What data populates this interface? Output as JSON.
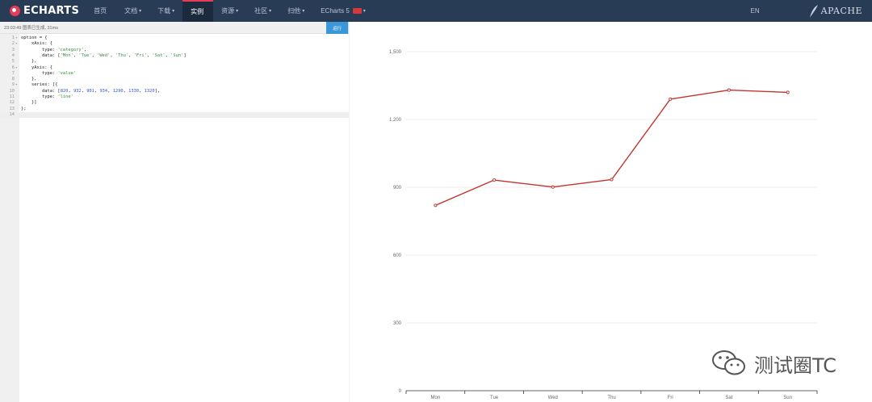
{
  "nav": {
    "logo": "ECHARTS",
    "items": [
      {
        "label": "首页",
        "caret": ""
      },
      {
        "label": "文档",
        "caret": "▾"
      },
      {
        "label": "下载",
        "caret": "▾"
      },
      {
        "label": "实例",
        "caret": ""
      },
      {
        "label": "资源",
        "caret": "▾"
      },
      {
        "label": "社区",
        "caret": "▾"
      },
      {
        "label": "扫他",
        "caret": "▾"
      },
      {
        "label": "ECharts 5",
        "caret": "▾"
      }
    ],
    "lang": "EN",
    "apache": "APACHE"
  },
  "editor": {
    "status": "23:03:49  图表已生成, 31ms",
    "run_label": "运行",
    "lines": [
      {
        "no": "1",
        "fold": "▾",
        "code": "option = {"
      },
      {
        "no": "2",
        "fold": "▾",
        "code": "    xAxis: {"
      },
      {
        "no": "3",
        "fold": "",
        "code": "        type: 'category',"
      },
      {
        "no": "4",
        "fold": "",
        "code": "        data: ['Mon', 'Tue', 'Wed', 'Thu', 'Fri', 'Sat', 'Sun']"
      },
      {
        "no": "5",
        "fold": "",
        "code": "    },"
      },
      {
        "no": "6",
        "fold": "▾",
        "code": "    yAxis: {"
      },
      {
        "no": "7",
        "fold": "",
        "code": "        type: 'value'"
      },
      {
        "no": "8",
        "fold": "",
        "code": "    },"
      },
      {
        "no": "9",
        "fold": "▾",
        "code": "    series: [{"
      },
      {
        "no": "10",
        "fold": "",
        "code": "        data: [820, 932, 901, 934, 1290, 1330, 1320],"
      },
      {
        "no": "11",
        "fold": "",
        "code": "        type: 'line'"
      },
      {
        "no": "12",
        "fold": "",
        "code": "    }]"
      },
      {
        "no": "13",
        "fold": "",
        "code": "};"
      },
      {
        "no": "14",
        "fold": "",
        "code": ""
      }
    ]
  },
  "chart_data": {
    "type": "line",
    "categories": [
      "Mon",
      "Tue",
      "Wed",
      "Thu",
      "Fri",
      "Sat",
      "Sun"
    ],
    "series": [
      {
        "values": [
          820,
          932,
          901,
          934,
          1290,
          1330,
          1320
        ]
      }
    ],
    "ylim": [
      0,
      1500
    ],
    "yticks": [
      0,
      300,
      600,
      900,
      1200,
      1500
    ],
    "ytick_labels": [
      "0",
      "300",
      "600",
      "900",
      "1,200",
      "1,500"
    ],
    "line_color": "#c23531",
    "grid": true
  },
  "watermark": {
    "text": "测试圈TC"
  }
}
